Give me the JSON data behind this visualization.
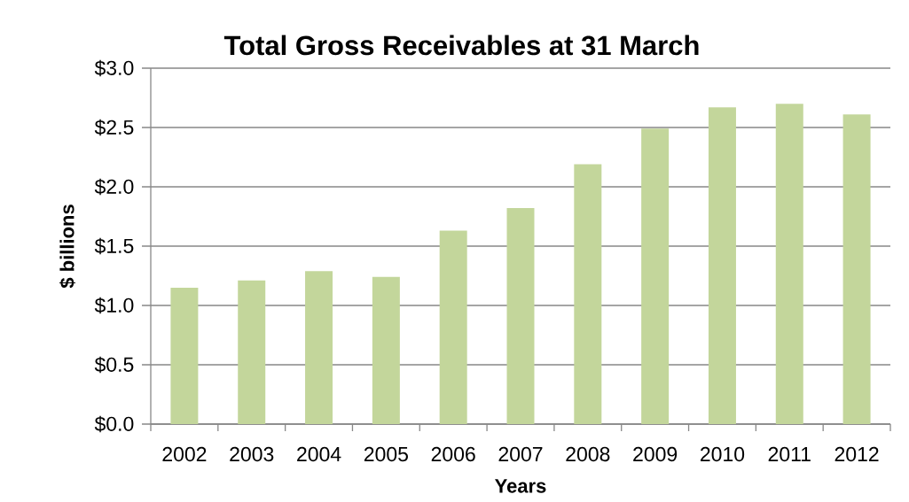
{
  "chart_data": {
    "type": "bar",
    "title": "Total Gross Receivables at 31 March",
    "xlabel": "Years",
    "ylabel": "$ billions",
    "categories": [
      "2002",
      "2003",
      "2004",
      "2005",
      "2006",
      "2007",
      "2008",
      "2009",
      "2010",
      "2011",
      "2012"
    ],
    "values": [
      1.15,
      1.21,
      1.29,
      1.24,
      1.63,
      1.82,
      2.19,
      2.49,
      2.67,
      2.7,
      2.61
    ],
    "color": "#c3d69b",
    "ylim": [
      0,
      3
    ],
    "yticks": [
      {
        "value": 0,
        "label": "$0.0"
      },
      {
        "value": 0.5,
        "label": "$0.5"
      },
      {
        "value": 1,
        "label": "$1.0"
      },
      {
        "value": 1.5,
        "label": "$1.5"
      },
      {
        "value": 2,
        "label": "$2.0"
      },
      {
        "value": 2.5,
        "label": "$2.5"
      },
      {
        "value": 3,
        "label": "$3.0"
      }
    ],
    "grid": "y"
  }
}
